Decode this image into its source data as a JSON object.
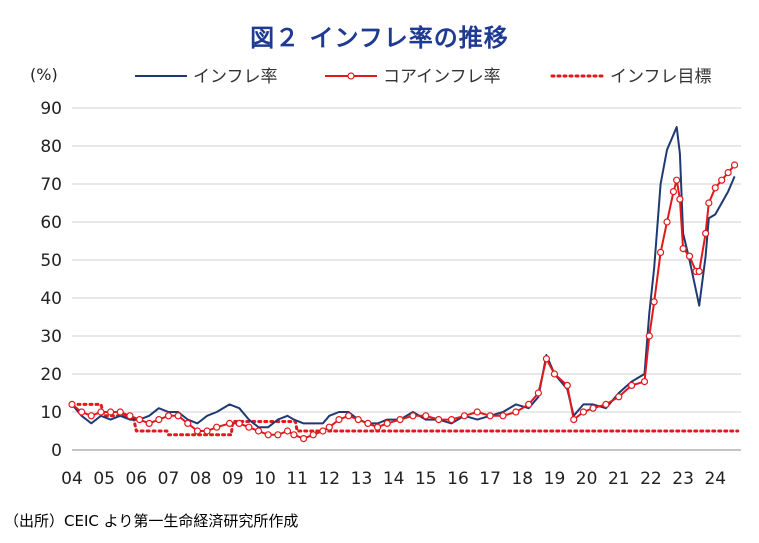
{
  "title": "図２ インフレ率の推移",
  "source": "（出所）CEIC より第一生命経済研究所作成",
  "colors": {
    "headline": "#1f3a72",
    "core": "#e0191b",
    "target": "#e0191b",
    "grid": "#d0d0d0",
    "title": "#1f3a93"
  },
  "chart_data": {
    "type": "line",
    "title": "図２ インフレ率の推移",
    "ylabel": "(%)",
    "ylim": [
      0,
      90
    ],
    "y_ticks": [
      "0",
      "10",
      "20",
      "30",
      "40",
      "50",
      "60",
      "70",
      "80",
      "90"
    ],
    "xlim": [
      2004,
      2024.8
    ],
    "x_ticks": [
      "04",
      "05",
      "06",
      "07",
      "08",
      "09",
      "10",
      "11",
      "12",
      "13",
      "14",
      "15",
      "16",
      "17",
      "18",
      "19",
      "20",
      "21",
      "22",
      "23",
      "24"
    ],
    "grid": "horizontal",
    "legend": "top-right",
    "series": [
      {
        "name": "インフレ率",
        "style": "solid",
        "points": [
          [
            2004.0,
            12
          ],
          [
            2004.3,
            9
          ],
          [
            2004.6,
            7
          ],
          [
            2004.9,
            9
          ],
          [
            2005.2,
            8
          ],
          [
            2005.5,
            9
          ],
          [
            2005.8,
            8
          ],
          [
            2006.1,
            8
          ],
          [
            2006.4,
            9
          ],
          [
            2006.7,
            11
          ],
          [
            2007.0,
            10
          ],
          [
            2007.3,
            10
          ],
          [
            2007.6,
            8
          ],
          [
            2007.9,
            7
          ],
          [
            2008.2,
            9
          ],
          [
            2008.5,
            10
          ],
          [
            2008.9,
            12
          ],
          [
            2009.2,
            11
          ],
          [
            2009.5,
            8
          ],
          [
            2009.8,
            6
          ],
          [
            2010.1,
            6
          ],
          [
            2010.4,
            8
          ],
          [
            2010.7,
            9
          ],
          [
            2010.9,
            8
          ],
          [
            2011.2,
            7
          ],
          [
            2011.5,
            7
          ],
          [
            2011.8,
            7
          ],
          [
            2012.0,
            9
          ],
          [
            2012.3,
            10
          ],
          [
            2012.6,
            10
          ],
          [
            2012.9,
            8
          ],
          [
            2013.2,
            7
          ],
          [
            2013.5,
            7
          ],
          [
            2013.8,
            8
          ],
          [
            2014.2,
            8
          ],
          [
            2014.6,
            10
          ],
          [
            2015.0,
            8
          ],
          [
            2015.4,
            8
          ],
          [
            2015.8,
            7
          ],
          [
            2016.2,
            9
          ],
          [
            2016.6,
            8
          ],
          [
            2017.0,
            9
          ],
          [
            2017.4,
            10
          ],
          [
            2017.8,
            12
          ],
          [
            2018.2,
            11
          ],
          [
            2018.5,
            14
          ],
          [
            2018.75,
            25
          ],
          [
            2019.0,
            20
          ],
          [
            2019.4,
            16
          ],
          [
            2019.6,
            9
          ],
          [
            2019.9,
            12
          ],
          [
            2020.2,
            12
          ],
          [
            2020.6,
            11
          ],
          [
            2021.0,
            15
          ],
          [
            2021.4,
            18
          ],
          [
            2021.8,
            20
          ],
          [
            2021.95,
            36
          ],
          [
            2022.1,
            48
          ],
          [
            2022.3,
            70
          ],
          [
            2022.5,
            79
          ],
          [
            2022.7,
            83
          ],
          [
            2022.8,
            85
          ],
          [
            2022.9,
            78
          ],
          [
            2023.0,
            57
          ],
          [
            2023.2,
            50
          ],
          [
            2023.4,
            42
          ],
          [
            2023.5,
            38
          ],
          [
            2023.7,
            51
          ],
          [
            2023.8,
            61
          ],
          [
            2024.0,
            62
          ],
          [
            2024.2,
            65
          ],
          [
            2024.4,
            68
          ],
          [
            2024.6,
            72
          ]
        ]
      },
      {
        "name": "コアインフレ率",
        "style": "solid-with-markers",
        "points": [
          [
            2004.0,
            12
          ],
          [
            2004.3,
            10
          ],
          [
            2004.6,
            9
          ],
          [
            2004.9,
            10
          ],
          [
            2005.2,
            10
          ],
          [
            2005.5,
            10
          ],
          [
            2005.8,
            9
          ],
          [
            2006.1,
            8
          ],
          [
            2006.4,
            7
          ],
          [
            2006.7,
            8
          ],
          [
            2007.0,
            9
          ],
          [
            2007.3,
            9
          ],
          [
            2007.6,
            7
          ],
          [
            2007.9,
            5
          ],
          [
            2008.2,
            5
          ],
          [
            2008.5,
            6
          ],
          [
            2008.9,
            7
          ],
          [
            2009.2,
            7
          ],
          [
            2009.5,
            6
          ],
          [
            2009.8,
            5
          ],
          [
            2010.1,
            4
          ],
          [
            2010.4,
            4
          ],
          [
            2010.7,
            5
          ],
          [
            2010.9,
            4
          ],
          [
            2011.2,
            3
          ],
          [
            2011.5,
            4
          ],
          [
            2011.8,
            5
          ],
          [
            2012.0,
            6
          ],
          [
            2012.3,
            8
          ],
          [
            2012.6,
            9
          ],
          [
            2012.9,
            8
          ],
          [
            2013.2,
            7
          ],
          [
            2013.5,
            6
          ],
          [
            2013.8,
            7
          ],
          [
            2014.2,
            8
          ],
          [
            2014.6,
            9
          ],
          [
            2015.0,
            9
          ],
          [
            2015.4,
            8
          ],
          [
            2015.8,
            8
          ],
          [
            2016.2,
            9
          ],
          [
            2016.6,
            10
          ],
          [
            2017.0,
            9
          ],
          [
            2017.4,
            9
          ],
          [
            2017.8,
            10
          ],
          [
            2018.2,
            12
          ],
          [
            2018.5,
            15
          ],
          [
            2018.75,
            24
          ],
          [
            2019.0,
            20
          ],
          [
            2019.4,
            17
          ],
          [
            2019.6,
            8
          ],
          [
            2019.9,
            10
          ],
          [
            2020.2,
            11
          ],
          [
            2020.6,
            12
          ],
          [
            2021.0,
            14
          ],
          [
            2021.4,
            17
          ],
          [
            2021.8,
            18
          ],
          [
            2021.95,
            30
          ],
          [
            2022.1,
            39
          ],
          [
            2022.3,
            52
          ],
          [
            2022.5,
            60
          ],
          [
            2022.7,
            68
          ],
          [
            2022.8,
            71
          ],
          [
            2022.9,
            66
          ],
          [
            2023.0,
            53
          ],
          [
            2023.2,
            51
          ],
          [
            2023.4,
            47
          ],
          [
            2023.5,
            47
          ],
          [
            2023.7,
            57
          ],
          [
            2023.8,
            65
          ],
          [
            2024.0,
            69
          ],
          [
            2024.2,
            71
          ],
          [
            2024.4,
            73
          ],
          [
            2024.6,
            75
          ]
        ]
      },
      {
        "name": "インフレ目標",
        "style": "dotted",
        "points": [
          [
            2004.0,
            12
          ],
          [
            2004.9,
            12
          ],
          [
            2005.0,
            9
          ],
          [
            2005.9,
            9
          ],
          [
            2006.0,
            5
          ],
          [
            2006.95,
            5
          ],
          [
            2007.0,
            4
          ],
          [
            2008.95,
            4
          ],
          [
            2009.0,
            7.5
          ],
          [
            2010.95,
            7.5
          ],
          [
            2011.0,
            5
          ],
          [
            2024.7,
            5
          ]
        ]
      }
    ]
  }
}
